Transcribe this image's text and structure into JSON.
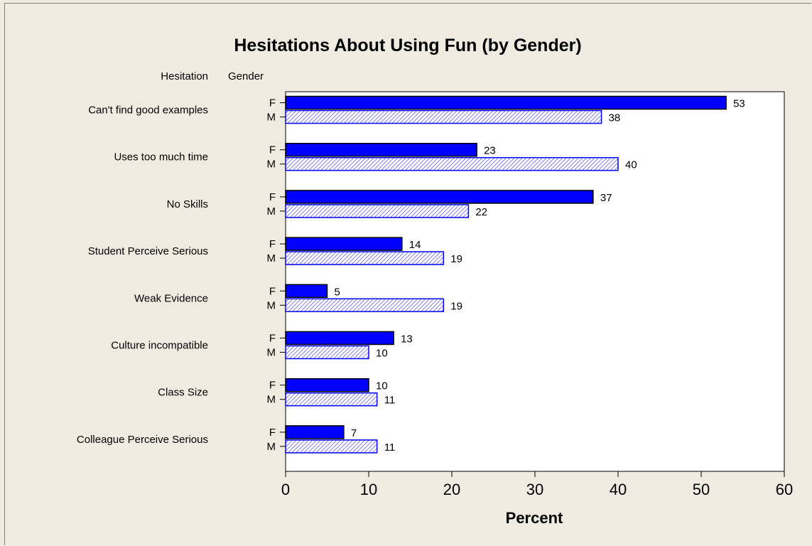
{
  "chart_data": {
    "type": "bar",
    "orientation": "horizontal",
    "title": "Hesitations About Using Fun (by Gender)",
    "category_header": "Hesitation",
    "group_header": "Gender",
    "xlabel": "Percent",
    "xlim": [
      0,
      60
    ],
    "xticks": [
      0,
      10,
      20,
      30,
      40,
      50,
      60
    ],
    "grid": false,
    "categories": [
      "Can't find good examples",
      "Uses too much time",
      "No Skills",
      "Student Perceive Serious",
      "Weak Evidence",
      "Culture incompatible",
      "Class Size",
      "Colleague Perceive Serious"
    ],
    "series": [
      {
        "name": "F",
        "color": "#0000ff",
        "pattern": "solid",
        "values": [
          53,
          23,
          37,
          14,
          5,
          13,
          10,
          7
        ]
      },
      {
        "name": "M",
        "color": "#0000ff",
        "pattern": "hatched",
        "values": [
          38,
          40,
          22,
          19,
          19,
          10,
          11,
          11
        ]
      }
    ]
  }
}
